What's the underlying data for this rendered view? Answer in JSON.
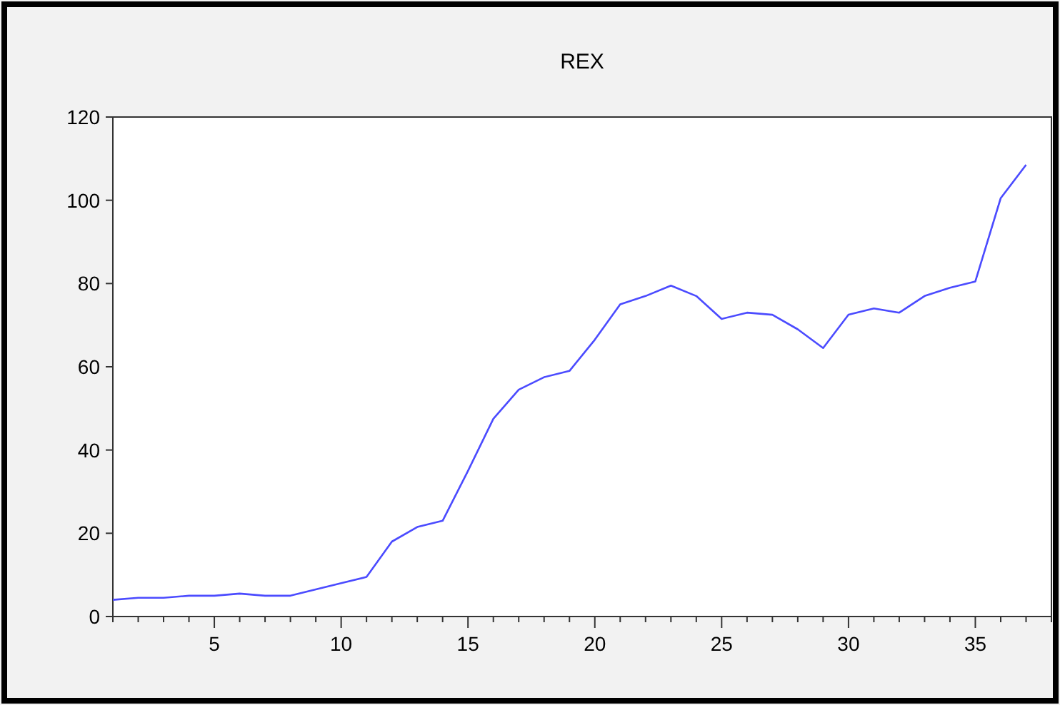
{
  "chart_data": {
    "type": "line",
    "title": "REX",
    "x": [
      1,
      2,
      3,
      4,
      5,
      6,
      7,
      8,
      9,
      10,
      11,
      12,
      13,
      14,
      15,
      16,
      17,
      18,
      19,
      20,
      21,
      22,
      23,
      24,
      25,
      26,
      27,
      28,
      29,
      30,
      31,
      32,
      33,
      34,
      35,
      36,
      37
    ],
    "series": [
      {
        "color": "#4b4bff",
        "values": [
          4,
          4.5,
          4.5,
          5,
          5,
          5.5,
          5,
          5,
          6.5,
          8,
          9.5,
          18,
          21.5,
          23,
          35,
          47.5,
          54.5,
          57.5,
          59,
          66.5,
          75,
          77,
          79.5,
          77,
          71.5,
          73,
          72.5,
          69,
          64.5,
          72.5,
          74,
          73,
          77,
          79,
          80.5,
          100.5,
          108.5
        ]
      }
    ],
    "xlim": [
      1,
      38
    ],
    "xticks": [
      {
        "value": 1,
        "label": null
      },
      {
        "value": 2,
        "label": null
      },
      {
        "value": 3,
        "label": null
      },
      {
        "value": 4,
        "label": null
      },
      5,
      {
        "value": 6,
        "label": null
      },
      {
        "value": 7,
        "label": null
      },
      {
        "value": 8,
        "label": null
      },
      {
        "value": 9,
        "label": null
      },
      10,
      {
        "value": 11,
        "label": null
      },
      {
        "value": 12,
        "label": null
      },
      {
        "value": 13,
        "label": null
      },
      {
        "value": 14,
        "label": null
      },
      15,
      {
        "value": 16,
        "label": null
      },
      {
        "value": 17,
        "label": null
      },
      {
        "value": 18,
        "label": null
      },
      {
        "value": 19,
        "label": null
      },
      20,
      {
        "value": 21,
        "label": null
      },
      {
        "value": 22,
        "label": null
      },
      {
        "value": 23,
        "label": null
      },
      {
        "value": 24,
        "label": null
      },
      25,
      {
        "value": 26,
        "label": null
      },
      {
        "value": 27,
        "label": null
      },
      {
        "value": 28,
        "label": null
      },
      {
        "value": 29,
        "label": null
      },
      30,
      {
        "value": 31,
        "label": null
      },
      {
        "value": 32,
        "label": null
      },
      {
        "value": 33,
        "label": null
      },
      {
        "value": 34,
        "label": null
      },
      35,
      {
        "value": 36,
        "label": null
      },
      {
        "value": 37,
        "label": null
      },
      {
        "value": 38,
        "label": null
      }
    ],
    "ylim": [
      0,
      120
    ],
    "yticks": [
      0,
      20,
      40,
      60,
      80,
      100,
      120
    ],
    "grid": false,
    "marker": "none",
    "line_style": "solid"
  }
}
